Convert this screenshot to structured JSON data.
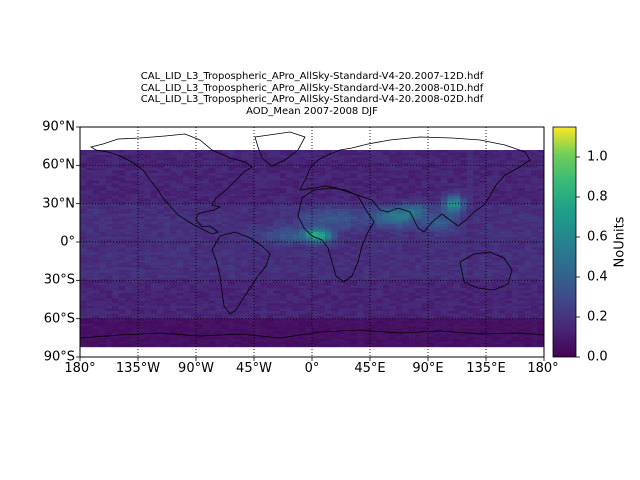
{
  "title": {
    "lines": [
      "CAL_LID_L3_Tropospheric_APro_AllSky-Standard-V4-20.2007-12D.hdf",
      "CAL_LID_L3_Tropospheric_APro_AllSky-Standard-V4-20.2008-01D.hdf",
      "CAL_LID_L3_Tropospheric_APro_AllSky-Standard-V4-20.2008-02D.hdf",
      "AOD_Mean 2007-2008 DJF"
    ]
  },
  "chart_data": {
    "type": "heatmap",
    "projection": "plate-carree",
    "xlim": [
      -180,
      180
    ],
    "ylim": [
      -90,
      90
    ],
    "data_lat_range": [
      -82,
      72
    ],
    "lat_ticks": [
      "90°N",
      "60°N",
      "30°N",
      "0°",
      "30°S",
      "60°S",
      "90°S"
    ],
    "lon_ticks": [
      "180°",
      "135°W",
      "90°W",
      "45°W",
      "0°",
      "45°E",
      "90°E",
      "135°E",
      "180°"
    ],
    "gridlines": "dotted",
    "colormap": "viridis",
    "colorbar": {
      "label": "NoUnits",
      "range": [
        0.0,
        1.15
      ],
      "ticks": [
        "0.0",
        "0.2",
        "0.4",
        "0.6",
        "0.8",
        "1.0"
      ]
    },
    "features": [
      {
        "region": "West Africa / Gulf of Guinea",
        "approx_value": 0.8
      },
      {
        "region": "Sahara / Sahel",
        "approx_value": 0.4
      },
      {
        "region": "Arabian Sea / India",
        "approx_value": 0.5
      },
      {
        "region": "Eastern China",
        "approx_value": 0.9
      },
      {
        "region": "Tropical Atlantic plume",
        "approx_value": 0.45
      },
      {
        "region": "Remote oceans",
        "approx_value": 0.12
      }
    ]
  },
  "colors": {
    "low": "#440154",
    "mid": "#21918c",
    "high": "#fde725"
  }
}
